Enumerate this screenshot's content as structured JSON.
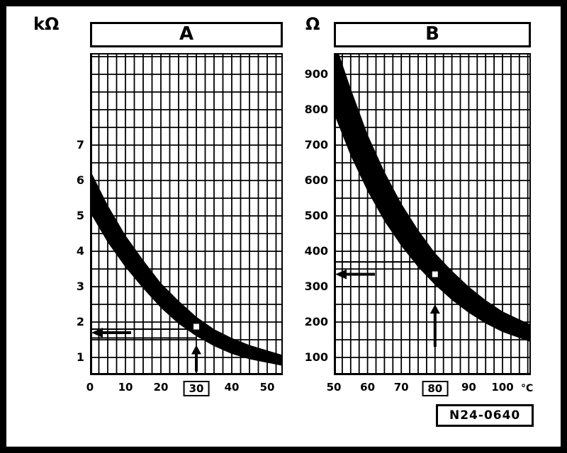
{
  "figure": {
    "reference": "N24-0640",
    "background": "#ffffff",
    "ink": "#000000"
  },
  "chart_data": [
    {
      "type": "area",
      "title": "A",
      "y_unit": "kΩ",
      "x_unit": "",
      "xlabel_ticks": [
        0,
        10,
        20,
        30,
        40,
        50
      ],
      "boxed_x_tick": 30,
      "y_ticks": [
        7,
        6,
        5,
        4,
        3,
        2,
        1
      ],
      "xlim": [
        0,
        54.4
      ],
      "ylim": [
        0.5,
        9.6
      ],
      "grid": true,
      "band": {
        "upper": [
          [
            0,
            6.3
          ],
          [
            5,
            5.3
          ],
          [
            10,
            4.45
          ],
          [
            15,
            3.75
          ],
          [
            20,
            3.1
          ],
          [
            25,
            2.6
          ],
          [
            30,
            2.15
          ],
          [
            35,
            1.8
          ],
          [
            40,
            1.55
          ],
          [
            45,
            1.35
          ],
          [
            50,
            1.2
          ],
          [
            55,
            1.05
          ]
        ],
        "lower": [
          [
            0,
            5.1
          ],
          [
            5,
            4.25
          ],
          [
            10,
            3.55
          ],
          [
            15,
            2.95
          ],
          [
            20,
            2.4
          ],
          [
            25,
            1.95
          ],
          [
            30,
            1.6
          ],
          [
            35,
            1.32
          ],
          [
            40,
            1.1
          ],
          [
            45,
            0.95
          ],
          [
            50,
            0.85
          ],
          [
            55,
            0.75
          ]
        ]
      },
      "annotations": {
        "test_temp": 30,
        "hlines": [
          1.8,
          1.55
        ],
        "result_arrow_v": 1.7,
        "marker": {
          "t": 30,
          "v": 1.87
        },
        "up_arrow": {
          "t": 30,
          "from_v": 0.6,
          "to_v": 1.35
        }
      }
    },
    {
      "type": "area",
      "title": "B",
      "y_unit": "Ω",
      "x_unit": "°C",
      "xlabel_ticks": [
        50,
        60,
        70,
        80,
        90,
        100
      ],
      "boxed_x_tick": 80,
      "y_ticks": [
        900,
        800,
        700,
        600,
        500,
        400,
        300,
        200,
        100
      ],
      "xlim": [
        50,
        108.4
      ],
      "ylim": [
        50,
        960
      ],
      "grid": true,
      "band": {
        "upper": [
          [
            50,
            1000
          ],
          [
            55,
            860
          ],
          [
            60,
            730
          ],
          [
            65,
            625
          ],
          [
            70,
            535
          ],
          [
            75,
            460
          ],
          [
            80,
            395
          ],
          [
            85,
            345
          ],
          [
            90,
            300
          ],
          [
            95,
            262
          ],
          [
            100,
            230
          ],
          [
            110,
            185
          ]
        ],
        "lower": [
          [
            50,
            790
          ],
          [
            55,
            670
          ],
          [
            60,
            570
          ],
          [
            65,
            485
          ],
          [
            70,
            415
          ],
          [
            75,
            355
          ],
          [
            80,
            305
          ],
          [
            85,
            262
          ],
          [
            90,
            226
          ],
          [
            95,
            196
          ],
          [
            100,
            172
          ],
          [
            110,
            138
          ]
        ]
      },
      "annotations": {
        "test_temp": 80,
        "hlines": [
          370,
          300
        ],
        "result_arrow_v": 335,
        "marker": {
          "t": 80,
          "v": 335
        },
        "up_arrow": {
          "t": 80,
          "from_v": 130,
          "to_v": 250
        }
      }
    }
  ]
}
